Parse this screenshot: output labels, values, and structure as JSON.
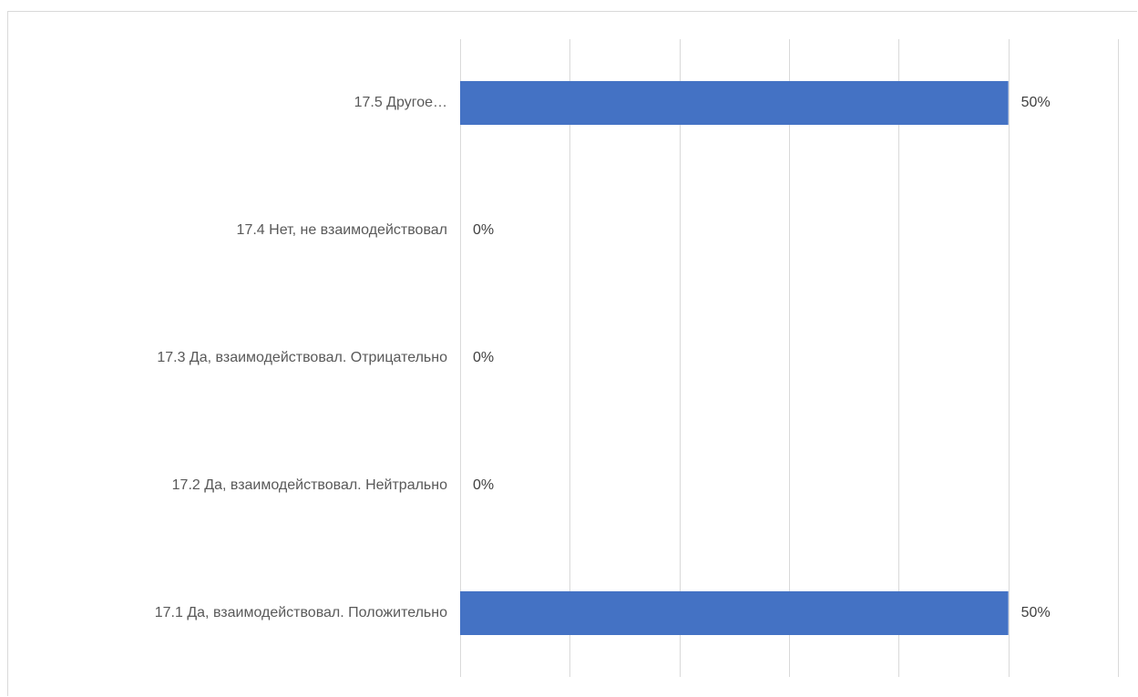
{
  "chart_data": {
    "type": "bar",
    "orientation": "horizontal",
    "categories": [
      "17.1 Да, взаимодействовал. Положительно",
      "17.2 Да, взаимодействовал. Нейтрально",
      "17.3 Да, взаимодействовал. Отрицательно",
      "17.4 Нет, не взаимодействовал",
      "17.5 Другое..."
    ],
    "values": [
      50,
      0,
      0,
      0,
      50
    ],
    "data_labels": [
      "50%",
      "0%",
      "0%",
      "0%",
      "50%"
    ],
    "value_unit": "%",
    "xlim": [
      0,
      60
    ],
    "x_gridline_step": 10,
    "x_tick_labels_visible": false,
    "grid": true,
    "legend": "none",
    "bar_color": "#4472c4",
    "title": "",
    "xlabel": "",
    "ylabel": ""
  }
}
